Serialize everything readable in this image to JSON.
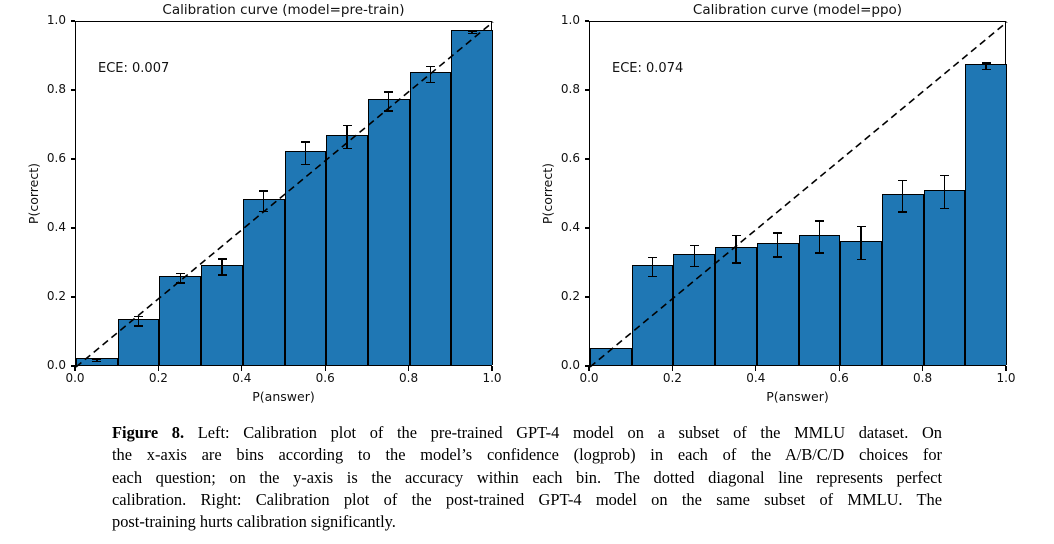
{
  "chart_data": [
    {
      "type": "bar",
      "title": "Calibration curve (model=pre-train)",
      "annotation": "ECE: 0.007",
      "xlabel": "P(answer)",
      "ylabel": "P(correct)",
      "xlim": [
        0.0,
        1.0
      ],
      "ylim": [
        0.0,
        1.0
      ],
      "xticks": [
        "0.0",
        "0.2",
        "0.4",
        "0.6",
        "0.8",
        "1.0"
      ],
      "yticks": [
        "0.0",
        "0.2",
        "0.4",
        "0.6",
        "0.8",
        "1.0"
      ],
      "grid": false,
      "legend": null,
      "bin_width": 0.1,
      "bin_centers": [
        0.05,
        0.15,
        0.25,
        0.35,
        0.45,
        0.55,
        0.65,
        0.75,
        0.85,
        0.95
      ],
      "values": [
        0.02,
        0.133,
        0.258,
        0.29,
        0.48,
        0.62,
        0.667,
        0.77,
        0.848,
        0.97
      ],
      "error_bars": [
        0.006,
        0.016,
        0.016,
        0.025,
        0.032,
        0.035,
        0.036,
        0.03,
        0.025,
        0.006
      ],
      "diagonal_line": "dashed y=x from (0,0) to (1,1), perfect calibration",
      "bar_color": "#1f77b4",
      "bar_edge_color": "#000000",
      "line_color": "#000000"
    },
    {
      "type": "bar",
      "title": "Calibration curve (model=ppo)",
      "annotation": "ECE: 0.074",
      "xlabel": "P(answer)",
      "ylabel": "P(correct)",
      "xlim": [
        0.0,
        1.0
      ],
      "ylim": [
        0.0,
        1.0
      ],
      "xticks": [
        "0.0",
        "0.2",
        "0.4",
        "0.6",
        "0.8",
        "1.0"
      ],
      "yticks": [
        "0.0",
        "0.2",
        "0.4",
        "0.6",
        "0.8",
        "1.0"
      ],
      "grid": false,
      "legend": null,
      "bin_width": 0.1,
      "bin_centers": [
        0.05,
        0.15,
        0.25,
        0.35,
        0.45,
        0.55,
        0.65,
        0.75,
        0.85,
        0.95
      ],
      "values": [
        0.05,
        0.29,
        0.322,
        0.342,
        0.354,
        0.377,
        0.36,
        0.495,
        0.507,
        0.872
      ],
      "error_bars": [
        0,
        0.03,
        0.032,
        0.042,
        0.037,
        0.048,
        0.05,
        0.048,
        0.05,
        0.012
      ],
      "diagonal_line": "dashed y=x from (0,0) to (1,1), perfect calibration",
      "bar_color": "#1f77b4",
      "bar_edge_color": "#000000",
      "line_color": "#000000"
    }
  ],
  "caption": {
    "label": "Figure 8.",
    "lines": [
      "Left: Calibration plot of the pre-trained GPT-4 model on a subset of the MMLU dataset. On",
      "the x-axis are bins according to the model’s confidence (logprob) in each of the A/B/C/D choices for",
      "each question; on the y-axis is the accuracy within each bin. The dotted diagonal line represents perfect",
      "calibration. Right: Calibration plot of the post-trained GPT-4 model on the same subset of MMLU. The",
      "post-training hurts calibration significantly."
    ]
  }
}
